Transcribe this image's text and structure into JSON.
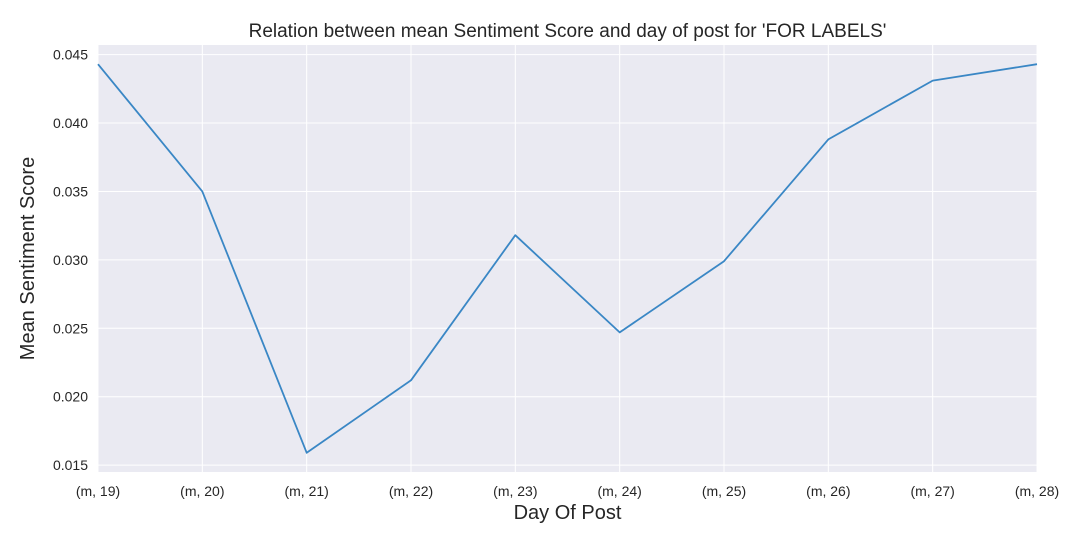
{
  "chart_data": {
    "type": "line",
    "title": "Relation between mean Sentiment Score and day of post for 'FOR LABELS'",
    "xlabel": "Day Of Post",
    "ylabel": "Mean Sentiment Score",
    "categories": [
      "(m, 19)",
      "(m, 20)",
      "(m, 21)",
      "(m, 22)",
      "(m, 23)",
      "(m, 24)",
      "(m, 25)",
      "(m, 26)",
      "(m, 27)",
      "(m, 28)"
    ],
    "series": [
      {
        "values": [
          0.0443,
          0.035,
          0.0159,
          0.0212,
          0.0318,
          0.0247,
          0.0299,
          0.0388,
          0.0431,
          0.0443
        ]
      }
    ],
    "ylim": [
      0.0145,
      0.0457
    ],
    "yticks": [
      "0.015",
      "0.020",
      "0.025",
      "0.030",
      "0.035",
      "0.040",
      "0.045"
    ],
    "grid": true,
    "colors": {
      "background": "#eaeaf2",
      "grid": "#ffffff",
      "line": "#3a87c5"
    }
  }
}
